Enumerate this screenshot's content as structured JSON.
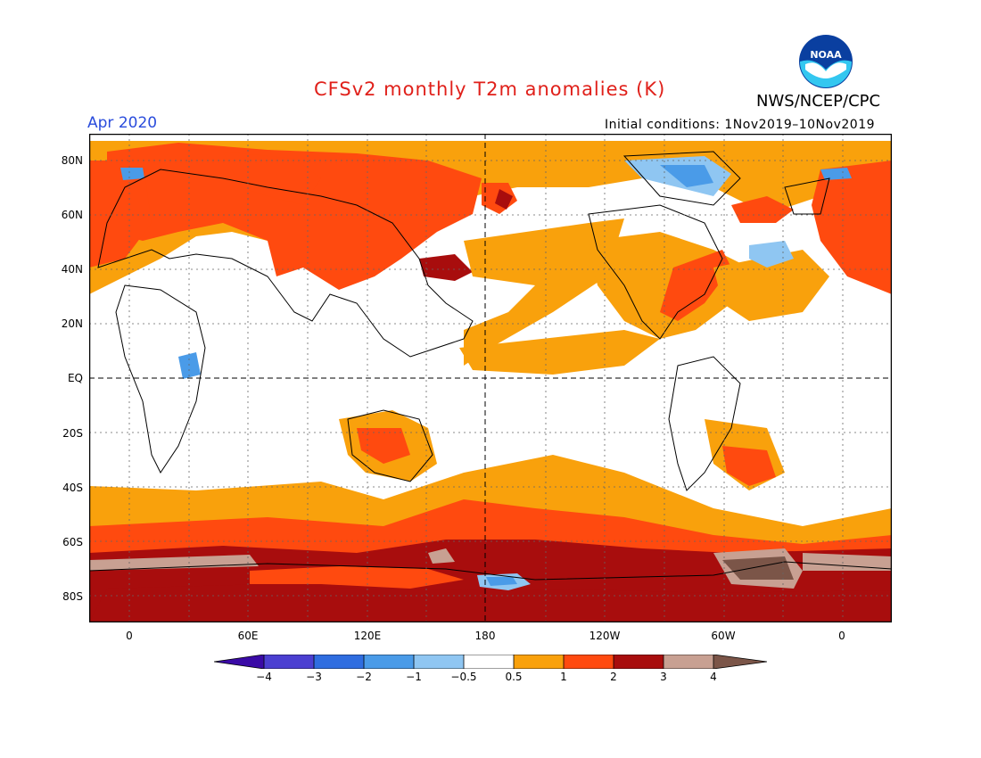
{
  "header": {
    "title": "CFSv2 monthly T2m anomalies (K)",
    "agency": "NWS/NCEP/CPC",
    "month": "Apr 2020",
    "initial_conditions": "Initial conditions: 1Nov2019–10Nov2019",
    "logo_text": "NOAA"
  },
  "lat_labels": [
    "80N",
    "60N",
    "40N",
    "20N",
    "EQ",
    "20S",
    "40S",
    "60S",
    "80S"
  ],
  "lon_labels": [
    "0",
    "60E",
    "120E",
    "180",
    "120W",
    "60W",
    "0"
  ],
  "colorbar": {
    "labels": [
      "−4",
      "−3",
      "−2",
      "−1",
      "−0.5",
      "0.5",
      "1",
      "2",
      "3",
      "4"
    ],
    "colors": [
      "#3a0aa6",
      "#4b3fd1",
      "#2f6de0",
      "#4a9be8",
      "#8fc6f2",
      "#ffffff",
      "#f9a10c",
      "#ff4a0f",
      "#a80d0d",
      "#c8a092",
      "#7b5548"
    ]
  },
  "map_colors": {
    "ocean_base": "#ffffff",
    "light_warm": "#f9a10c",
    "warm": "#ff4a0f",
    "hot": "#a80d0d",
    "very_hot": "#c8a092",
    "extreme": "#7b5548",
    "cool": "#4a9be8",
    "light_cool": "#8fc6f2",
    "coast": "#000000"
  }
}
